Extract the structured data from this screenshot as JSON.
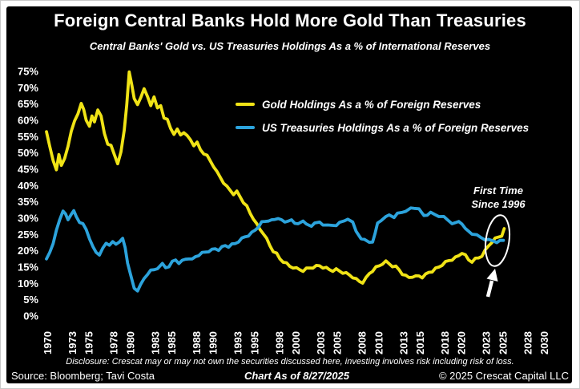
{
  "title": "Foreign Central Banks Hold More Gold Than Treasuries",
  "subtitle": "Central Banks' Gold vs. US Treasuries Holdings As a % of International Reserves",
  "legend": [
    {
      "label": "Gold Holdings As a % of Foreign Reserves",
      "color": "#F0E316"
    },
    {
      "label": "US Treasuries Holdings As a % of Foreign Reserves",
      "color": "#2CA3DC"
    }
  ],
  "annotation": {
    "line1": "First Time",
    "line2": "Since 1996"
  },
  "footer": {
    "disclosure": "Disclosure: Crescat may or may not own the securities discussed here, investing involves risk including risk of loss.",
    "source": "Source: Bloomberg; Tavi Costa",
    "as_of": "Chart As of 8/27/2025",
    "copyright": "© 2025 Crescat Capital LLC"
  },
  "chart_data": {
    "type": "line",
    "title": "Foreign Central Banks Hold More Gold Than Treasuries",
    "subtitle": "Central Banks' Gold vs. US Treasuries Holdings As a % of International Reserves",
    "xlabel": "",
    "ylabel": "",
    "background": "#000000",
    "text_color": "#FFFFFF",
    "grid": false,
    "legend_position": "top-center-inside",
    "ylim": [
      0,
      75
    ],
    "y_tick_step": 5,
    "y_tick_labels": [
      "0%",
      "5%",
      "10%",
      "15%",
      "20%",
      "25%",
      "30%",
      "35%",
      "40%",
      "45%",
      "50%",
      "55%",
      "60%",
      "65%",
      "70%",
      "75%"
    ],
    "x_range": [
      1970,
      2030
    ],
    "x_ticks": [
      1970,
      1973,
      1975,
      1978,
      1980,
      1983,
      1985,
      1988,
      1990,
      1993,
      1995,
      1998,
      2000,
      2003,
      2005,
      2008,
      2010,
      2013,
      2015,
      2018,
      2020,
      2023,
      2025,
      2028,
      2030
    ],
    "annotations": [
      {
        "text": "First Time Since 1996",
        "target_year": 2025,
        "target_value": 24,
        "marker": "ellipse-and-up-arrow"
      }
    ],
    "series": [
      {
        "name": "Gold Holdings As a % of Foreign Reserves",
        "color": "#F0E316",
        "points": [
          [
            1970,
            56.5
          ],
          [
            1970.4,
            52
          ],
          [
            1970.8,
            48
          ],
          [
            1971.2,
            44.5
          ],
          [
            1971.5,
            49.5
          ],
          [
            1971.8,
            46.5
          ],
          [
            1972.2,
            48
          ],
          [
            1972.6,
            52
          ],
          [
            1973,
            57
          ],
          [
            1973.4,
            59.5
          ],
          [
            1973.8,
            62
          ],
          [
            1974.2,
            65.5
          ],
          [
            1974.5,
            63
          ],
          [
            1974.8,
            60
          ],
          [
            1975.2,
            58.5
          ],
          [
            1975.5,
            61
          ],
          [
            1975.8,
            59.5
          ],
          [
            1976.2,
            63.5
          ],
          [
            1976.6,
            61
          ],
          [
            1977,
            56
          ],
          [
            1977.4,
            53
          ],
          [
            1977.8,
            52
          ],
          [
            1978.2,
            49.5
          ],
          [
            1978.6,
            47
          ],
          [
            1979,
            50
          ],
          [
            1979.4,
            57
          ],
          [
            1979.7,
            65
          ],
          [
            1980,
            74.5
          ],
          [
            1980.3,
            71
          ],
          [
            1980.6,
            67
          ],
          [
            1981,
            64.5
          ],
          [
            1981.4,
            67
          ],
          [
            1981.8,
            70
          ],
          [
            1982.2,
            67
          ],
          [
            1982.6,
            64.5
          ],
          [
            1983,
            67.5
          ],
          [
            1983.4,
            63.5
          ],
          [
            1983.8,
            64.5
          ],
          [
            1984.2,
            61
          ],
          [
            1984.6,
            60
          ],
          [
            1985,
            57.5
          ],
          [
            1985.4,
            56
          ],
          [
            1985.8,
            57
          ],
          [
            1986.2,
            55.5
          ],
          [
            1986.6,
            56.5
          ],
          [
            1987,
            55
          ],
          [
            1987.4,
            54
          ],
          [
            1987.8,
            52.5
          ],
          [
            1988.2,
            53
          ],
          [
            1988.6,
            51
          ],
          [
            1989,
            50
          ],
          [
            1989.4,
            49
          ],
          [
            1989.8,
            47.5
          ],
          [
            1990.2,
            46
          ],
          [
            1990.6,
            44
          ],
          [
            1991,
            42.5
          ],
          [
            1991.4,
            41
          ],
          [
            1991.8,
            39.5
          ],
          [
            1992.2,
            38.5
          ],
          [
            1992.6,
            37.5
          ],
          [
            1993,
            38
          ],
          [
            1993.4,
            36.5
          ],
          [
            1993.8,
            35
          ],
          [
            1994.2,
            33.5
          ],
          [
            1994.6,
            31.5
          ],
          [
            1995,
            30
          ],
          [
            1995.4,
            28
          ],
          [
            1995.8,
            26.5
          ],
          [
            1996.2,
            25.5
          ],
          [
            1996.6,
            23.5
          ],
          [
            1997,
            21.5
          ],
          [
            1997.4,
            20
          ],
          [
            1997.8,
            19
          ],
          [
            1998.2,
            17.5
          ],
          [
            1998.6,
            16.8
          ],
          [
            1999,
            16
          ],
          [
            1999.4,
            15.2
          ],
          [
            1999.8,
            15
          ],
          [
            2000.2,
            14.5
          ],
          [
            2000.6,
            14.2
          ],
          [
            2001,
            14
          ],
          [
            2001.4,
            14.4
          ],
          [
            2001.8,
            14.7
          ],
          [
            2002.2,
            15
          ],
          [
            2002.6,
            15.2
          ],
          [
            2003,
            15.4
          ],
          [
            2003.4,
            15
          ],
          [
            2003.8,
            14.6
          ],
          [
            2004.2,
            14.2
          ],
          [
            2004.6,
            14
          ],
          [
            2005,
            14.2
          ],
          [
            2005.4,
            13.8
          ],
          [
            2005.8,
            13.4
          ],
          [
            2006.2,
            13
          ],
          [
            2006.6,
            12.6
          ],
          [
            2007,
            12
          ],
          [
            2007.4,
            11.2
          ],
          [
            2007.8,
            10.6
          ],
          [
            2008.2,
            10.4
          ],
          [
            2008.6,
            11.5
          ],
          [
            2009,
            13
          ],
          [
            2009.4,
            14
          ],
          [
            2009.8,
            14.8
          ],
          [
            2010.2,
            15.4
          ],
          [
            2010.6,
            16.2
          ],
          [
            2011,
            16.6
          ],
          [
            2011.4,
            16
          ],
          [
            2011.8,
            15.4
          ],
          [
            2012.2,
            15
          ],
          [
            2012.6,
            14.2
          ],
          [
            2013,
            13
          ],
          [
            2013.4,
            12.2
          ],
          [
            2013.8,
            11.8
          ],
          [
            2014.2,
            12.2
          ],
          [
            2014.6,
            12
          ],
          [
            2015,
            12.3
          ],
          [
            2015.4,
            12
          ],
          [
            2015.8,
            12.6
          ],
          [
            2016.2,
            13.4
          ],
          [
            2016.6,
            13.8
          ],
          [
            2017,
            14.4
          ],
          [
            2017.4,
            15
          ],
          [
            2017.8,
            15.8
          ],
          [
            2018.2,
            16.4
          ],
          [
            2018.6,
            17
          ],
          [
            2019,
            17.4
          ],
          [
            2019.4,
            17.8
          ],
          [
            2019.8,
            18.5
          ],
          [
            2020.2,
            19.5
          ],
          [
            2020.6,
            18.5
          ],
          [
            2021,
            17.2
          ],
          [
            2021.4,
            16.8
          ],
          [
            2021.8,
            17.4
          ],
          [
            2022.2,
            17.8
          ],
          [
            2022.6,
            18.6
          ],
          [
            2023,
            20
          ],
          [
            2023.4,
            21.5
          ],
          [
            2023.8,
            22.8
          ],
          [
            2024.2,
            23.6
          ],
          [
            2024.6,
            24.2
          ],
          [
            2025,
            24.8
          ],
          [
            2025.3,
            26.8
          ]
        ]
      },
      {
        "name": "US Treasuries Holdings As a % of Foreign Reserves",
        "color": "#2CA3DC",
        "points": [
          [
            1970,
            17.5
          ],
          [
            1970.4,
            19.5
          ],
          [
            1970.8,
            22.5
          ],
          [
            1971.2,
            26
          ],
          [
            1971.6,
            29.5
          ],
          [
            1972,
            32.5
          ],
          [
            1972.3,
            31
          ],
          [
            1972.6,
            29.5
          ],
          [
            1973,
            31.5
          ],
          [
            1973.3,
            32
          ],
          [
            1973.6,
            30.5
          ],
          [
            1974,
            29
          ],
          [
            1974.4,
            28
          ],
          [
            1974.8,
            26.5
          ],
          [
            1975.2,
            24
          ],
          [
            1975.6,
            21
          ],
          [
            1976,
            19.5
          ],
          [
            1976.4,
            19
          ],
          [
            1976.8,
            20.5
          ],
          [
            1977.2,
            22.3
          ],
          [
            1977.6,
            22
          ],
          [
            1978,
            22.5
          ],
          [
            1978.4,
            22
          ],
          [
            1978.8,
            23
          ],
          [
            1979.2,
            23.5
          ],
          [
            1979.5,
            21
          ],
          [
            1979.8,
            16.5
          ],
          [
            1980.2,
            12
          ],
          [
            1980.6,
            8.5
          ],
          [
            1981,
            8
          ],
          [
            1981.4,
            9.5
          ],
          [
            1981.8,
            11.5
          ],
          [
            1982.2,
            13
          ],
          [
            1982.6,
            13.8
          ],
          [
            1983,
            14.2
          ],
          [
            1983.4,
            14.8
          ],
          [
            1984,
            15.8
          ],
          [
            1984.4,
            14.8
          ],
          [
            1984.8,
            15.4
          ],
          [
            1985.2,
            16.5
          ],
          [
            1985.6,
            17.2
          ],
          [
            1986,
            16.4
          ],
          [
            1986.4,
            16.8
          ],
          [
            1986.8,
            17.4
          ],
          [
            1987.2,
            17.8
          ],
          [
            1987.6,
            17.2
          ],
          [
            1988,
            18.2
          ],
          [
            1988.4,
            18.8
          ],
          [
            1988.8,
            19.2
          ],
          [
            1989.2,
            19.6
          ],
          [
            1989.6,
            20
          ],
          [
            1990,
            20.2
          ],
          [
            1990.4,
            20.6
          ],
          [
            1990.8,
            20.4
          ],
          [
            1991.2,
            21
          ],
          [
            1991.6,
            21.6
          ],
          [
            1992,
            21.4
          ],
          [
            1992.4,
            21.8
          ],
          [
            1992.8,
            22.2
          ],
          [
            1993.2,
            23
          ],
          [
            1993.6,
            23.6
          ],
          [
            1994,
            24.3
          ],
          [
            1994.4,
            24.8
          ],
          [
            1994.8,
            25.4
          ],
          [
            1995.2,
            26.3
          ],
          [
            1995.6,
            27.5
          ],
          [
            1996,
            28.6
          ],
          [
            1996.4,
            29
          ],
          [
            1996.8,
            29.4
          ],
          [
            1997.2,
            29.2
          ],
          [
            1997.6,
            29.6
          ],
          [
            1998,
            30.2
          ],
          [
            1998.4,
            29.2
          ],
          [
            1998.8,
            28.8
          ],
          [
            1999.2,
            29.4
          ],
          [
            1999.6,
            29.2
          ],
          [
            2000,
            28.4
          ],
          [
            2000.4,
            28.6
          ],
          [
            2001,
            28.8
          ],
          [
            2001.4,
            28.2
          ],
          [
            2002,
            27.8
          ],
          [
            2002.4,
            28.2
          ],
          [
            2003,
            28.8
          ],
          [
            2003.4,
            28.2
          ],
          [
            2004,
            27.6
          ],
          [
            2004.4,
            27.8
          ],
          [
            2005,
            28
          ],
          [
            2005.4,
            28.4
          ],
          [
            2006,
            29.2
          ],
          [
            2006.4,
            30
          ],
          [
            2007,
            28.5
          ],
          [
            2007.4,
            26
          ],
          [
            2008,
            24
          ],
          [
            2008.4,
            23.2
          ],
          [
            2009,
            22.6
          ],
          [
            2009.4,
            23
          ],
          [
            2009.7,
            25
          ],
          [
            2010,
            28.5
          ],
          [
            2010.4,
            29.5
          ],
          [
            2011,
            30.2
          ],
          [
            2011.4,
            31
          ],
          [
            2012,
            30.5
          ],
          [
            2012.4,
            31.2
          ],
          [
            2013,
            31.8
          ],
          [
            2013.4,
            32.4
          ],
          [
            2014,
            32.8
          ],
          [
            2014.4,
            33
          ],
          [
            2015,
            33.2
          ],
          [
            2015.3,
            31.5
          ],
          [
            2015.6,
            30.8
          ],
          [
            2016,
            31.2
          ],
          [
            2016.4,
            31.5
          ],
          [
            2017,
            31
          ],
          [
            2017.4,
            30.8
          ],
          [
            2018,
            30.2
          ],
          [
            2018.4,
            29.6
          ],
          [
            2019,
            28.6
          ],
          [
            2019.4,
            28.3
          ],
          [
            2019.8,
            29
          ],
          [
            2020.2,
            28.5
          ],
          [
            2020.6,
            26.5
          ],
          [
            2021,
            26
          ],
          [
            2021.4,
            25.4
          ],
          [
            2022,
            24.6
          ],
          [
            2022.4,
            24.2
          ],
          [
            2023,
            23.6
          ],
          [
            2023.4,
            23.2
          ],
          [
            2024,
            23
          ],
          [
            2024.4,
            22.8
          ],
          [
            2024.8,
            22.9
          ],
          [
            2025.2,
            23.2
          ]
        ]
      }
    ]
  }
}
